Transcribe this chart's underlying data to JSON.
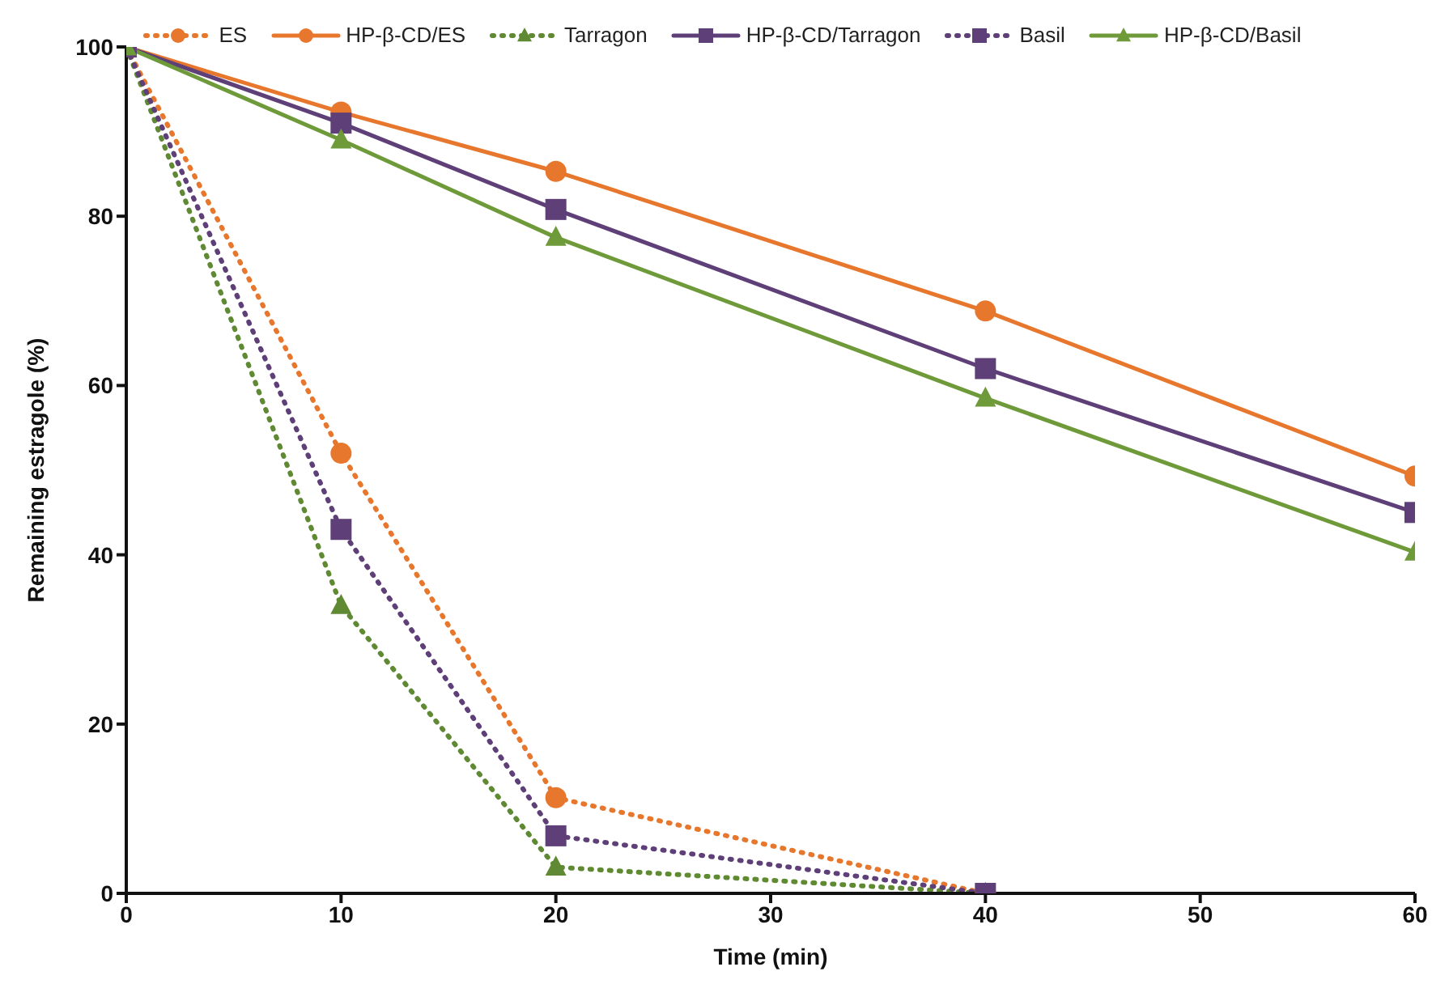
{
  "chart_data": {
    "type": "line",
    "xlabel": "Time (min)",
    "ylabel": "Remaining estragole (%)",
    "x": [
      0,
      10,
      20,
      40,
      60
    ],
    "xlim": [
      0,
      60
    ],
    "xticks": [
      0,
      10,
      20,
      30,
      40,
      50,
      60
    ],
    "ylim": [
      0,
      100
    ],
    "yticks": [
      0,
      20,
      40,
      60,
      80,
      100
    ],
    "grid": false,
    "legend": "top",
    "series": [
      {
        "name": "ES",
        "color": "#e8772e",
        "marker": "circle",
        "line_style": "dotted",
        "values": [
          100,
          52,
          11.3,
          0,
          null
        ]
      },
      {
        "name": "HP-β-CD/ES",
        "color": "#e8772e",
        "marker": "circle",
        "line_style": "solid",
        "values": [
          100,
          92.3,
          85.3,
          68.8,
          49.3
        ]
      },
      {
        "name": "Tarragon",
        "color": "#5f8a33",
        "marker": "triangle",
        "line_style": "dotted",
        "values": [
          100,
          34,
          3.1,
          0,
          null
        ]
      },
      {
        "name": "HP-β-CD/Tarragon",
        "color": "#5e3f78",
        "marker": "square",
        "line_style": "solid",
        "values": [
          100,
          91,
          80.8,
          62,
          45
        ]
      },
      {
        "name": "Basil",
        "color": "#5e3f78",
        "marker": "square",
        "line_style": "dotted",
        "values": [
          100,
          43,
          6.8,
          0,
          null
        ]
      },
      {
        "name": "HP-β-CD/Basil",
        "color": "#6e9a3a",
        "marker": "triangle",
        "line_style": "solid",
        "values": [
          100,
          89,
          77.5,
          58.5,
          40.3
        ]
      }
    ]
  }
}
